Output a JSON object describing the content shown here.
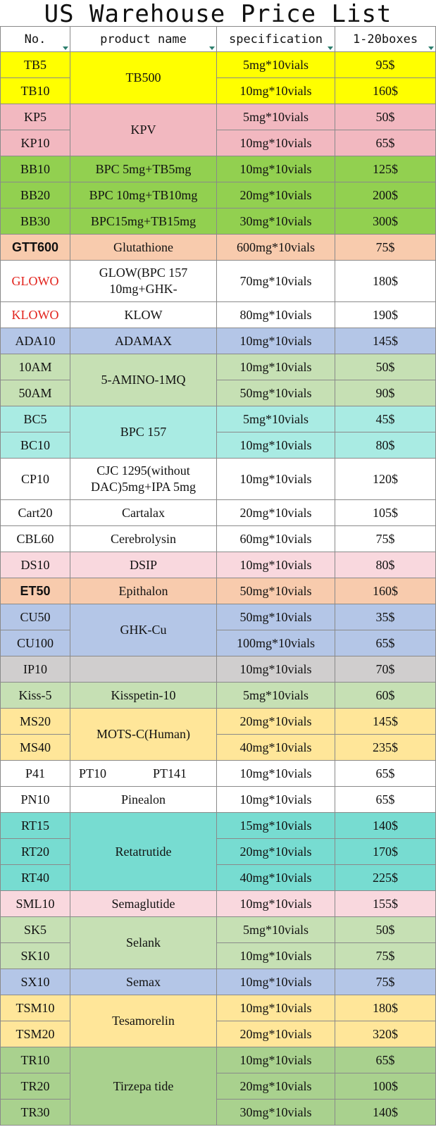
{
  "title": "US Warehouse Price List",
  "headers": [
    "No.",
    "product name",
    "specification",
    "1-20boxes"
  ],
  "colors": {
    "yellow": "#ffff00",
    "pink": "#f2b8c0",
    "green": "#92d050",
    "peach": "#f8cbad",
    "white": "#ffffff",
    "periwinkle": "#b4c6e7",
    "lightgreen": "#c6e0b4",
    "aqua": "#a9ebe3",
    "lightpink": "#f9d8de",
    "gray": "#d0cece",
    "gold": "#ffe699",
    "teal": "#77dcd1",
    "midgreen": "#a9d18e"
  },
  "groups": [
    {
      "name": "TB500",
      "color": "yellow",
      "items": [
        {
          "code": "TB5",
          "spec": "5mg*10vials",
          "price": "95$"
        },
        {
          "code": "TB10",
          "spec": "10mg*10vials",
          "price": "160$"
        }
      ]
    },
    {
      "name": "KPV",
      "color": "pink",
      "items": [
        {
          "code": "KP5",
          "spec": "5mg*10vials",
          "price": "50$"
        },
        {
          "code": "KP10",
          "spec": "10mg*10vials",
          "price": "65$"
        }
      ]
    },
    {
      "name": "BPC 5mg+TB5mg",
      "color": "green",
      "items": [
        {
          "code": "BB10",
          "spec": "10mg*10vials",
          "price": "125$"
        }
      ]
    },
    {
      "name": "BPC 10mg+TB10mg",
      "color": "green",
      "items": [
        {
          "code": "BB20",
          "spec": "20mg*10vials",
          "price": "200$"
        }
      ]
    },
    {
      "name": "BPC15mg+TB15mg",
      "color": "green",
      "items": [
        {
          "code": "BB30",
          "spec": "30mg*10vials",
          "price": "300$"
        }
      ]
    },
    {
      "name": "Glutathione",
      "color": "peach",
      "codeColor": "peach",
      "codeStyle": "bold",
      "items": [
        {
          "code": "GTT600",
          "spec": "600mg*10vials",
          "price": "75$"
        }
      ]
    },
    {
      "name": "GLOW(BPC 157 10mg+GHK-",
      "color": "white",
      "codeStyle": "red",
      "tall": true,
      "wrap": true,
      "items": [
        {
          "code": "GLOWO",
          "spec": "70mg*10vials",
          "price": "180$"
        }
      ]
    },
    {
      "name": "KLOW",
      "color": "white",
      "codeStyle": "red",
      "items": [
        {
          "code": "KLOWO",
          "spec": "80mg*10vials",
          "price": "190$"
        }
      ]
    },
    {
      "name": "ADAMAX",
      "color": "periwinkle",
      "items": [
        {
          "code": "ADA10",
          "spec": "10mg*10vials",
          "price": "145$"
        }
      ]
    },
    {
      "name": "5-AMINO-1MQ",
      "color": "lightgreen",
      "items": [
        {
          "code": "10AM",
          "spec": "10mg*10vials",
          "price": "50$"
        },
        {
          "code": "50AM",
          "spec": "50mg*10vials",
          "price": "90$"
        }
      ]
    },
    {
      "name": "BPC 157",
      "color": "aqua",
      "items": [
        {
          "code": "BC5",
          "spec": "5mg*10vials",
          "price": "45$"
        },
        {
          "code": "BC10",
          "spec": "10mg*10vials",
          "price": "80$"
        }
      ]
    },
    {
      "name": "CJC 1295(without DAC)5mg+IPA 5mg",
      "color": "white",
      "tall": true,
      "wrap": true,
      "items": [
        {
          "code": "CP10",
          "spec": "10mg*10vials",
          "price": "120$"
        }
      ]
    },
    {
      "name": "Cartalax",
      "color": "white",
      "items": [
        {
          "code": "Cart20",
          "spec": "20mg*10vials",
          "price": "105$"
        }
      ]
    },
    {
      "name": "Cerebrolysin",
      "color": "white",
      "items": [
        {
          "code": "CBL60",
          "spec": "60mg*10vials",
          "price": "75$"
        }
      ]
    },
    {
      "name": "DSIP",
      "color": "lightpink",
      "items": [
        {
          "code": "DS10",
          "spec": "10mg*10vials",
          "price": "80$"
        }
      ]
    },
    {
      "name": "Epithalon",
      "color": "peach",
      "codeStyle": "bold",
      "items": [
        {
          "code": "ET50",
          "spec": "50mg*10vials",
          "price": "160$"
        }
      ]
    },
    {
      "name": "GHK-Cu",
      "color": "periwinkle",
      "items": [
        {
          "code": "CU50",
          "spec": "50mg*10vials",
          "price": "35$"
        },
        {
          "code": "CU100",
          "spec": "100mg*10vials",
          "price": "65$"
        }
      ]
    },
    {
      "name": "",
      "color": "gray",
      "items": [
        {
          "code": "IP10",
          "spec": "10mg*10vials",
          "price": "70$"
        }
      ]
    },
    {
      "name": "Kisspetin-10",
      "color": "lightgreen",
      "items": [
        {
          "code": "Kiss-5",
          "spec": "5mg*10vials",
          "price": "60$"
        }
      ]
    },
    {
      "name": "MOTS-C(Human)",
      "color": "gold",
      "items": [
        {
          "code": "MS20",
          "spec": "20mg*10vials",
          "price": "145$"
        },
        {
          "code": "MS40",
          "spec": "40mg*10vials",
          "price": "235$"
        }
      ]
    },
    {
      "name": "",
      "nameParts": [
        "PT10",
        "PT141"
      ],
      "color": "white",
      "items": [
        {
          "code": "P41",
          "spec": "10mg*10vials",
          "price": "65$"
        }
      ]
    },
    {
      "name": "Pinealon",
      "color": "white",
      "items": [
        {
          "code": "PN10",
          "spec": "10mg*10vials",
          "price": "65$"
        }
      ]
    },
    {
      "name": "Retatrutide",
      "color": "teal",
      "items": [
        {
          "code": "RT15",
          "spec": "15mg*10vials",
          "price": "140$"
        },
        {
          "code": "RT20",
          "spec": "20mg*10vials",
          "price": "170$"
        },
        {
          "code": "RT40",
          "spec": "40mg*10vials",
          "price": "225$"
        }
      ]
    },
    {
      "name": "Semaglutide",
      "color": "lightpink",
      "items": [
        {
          "code": "SML10",
          "spec": "10mg*10vials",
          "price": "155$"
        }
      ]
    },
    {
      "name": "Selank",
      "color": "lightgreen",
      "items": [
        {
          "code": "SK5",
          "spec": "5mg*10vials",
          "price": "50$"
        },
        {
          "code": "SK10",
          "spec": "10mg*10vials",
          "price": "75$"
        }
      ]
    },
    {
      "name": "Semax",
      "color": "periwinkle",
      "items": [
        {
          "code": "SX10",
          "spec": "10mg*10vials",
          "price": "75$"
        }
      ]
    },
    {
      "name": "Tesamorelin",
      "color": "gold",
      "items": [
        {
          "code": "TSM10",
          "spec": "10mg*10vials",
          "price": "180$"
        },
        {
          "code": "TSM20",
          "spec": "20mg*10vials",
          "price": "320$"
        }
      ]
    },
    {
      "name": "Tirzepa tide",
      "color": "midgreen",
      "items": [
        {
          "code": "TR10",
          "spec": "10mg*10vials",
          "price": "65$"
        },
        {
          "code": "TR20",
          "spec": "20mg*10vials",
          "price": "100$"
        },
        {
          "code": "TR30",
          "spec": "30mg*10vials",
          "price": "140$"
        }
      ]
    }
  ]
}
